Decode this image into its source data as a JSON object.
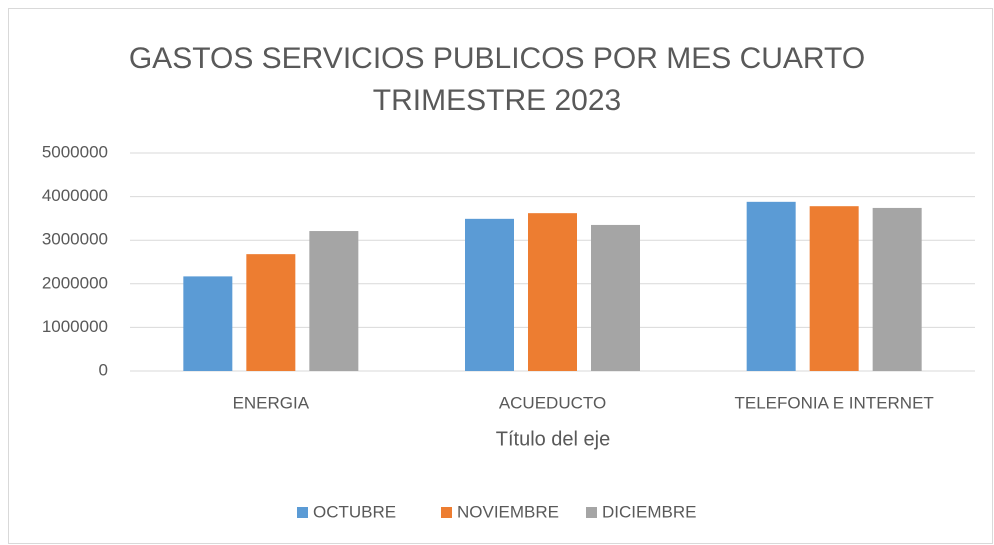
{
  "chart_data": {
    "type": "bar",
    "title": "GASTOS SERVICIOS PUBLICOS POR MES CUARTO TRIMESTRE 2023",
    "x_label": "Título del eje",
    "categories": [
      "ENERGIA",
      "ACUEDUCTO",
      "TELEFONIA E INTERNET"
    ],
    "series": [
      {
        "name": "OCTUBRE",
        "color": "#5b9bd5",
        "values": [
          2170000,
          3490000,
          3880000
        ]
      },
      {
        "name": "NOVIEMBRE",
        "color": "#ed7d31",
        "values": [
          2680000,
          3620000,
          3780000
        ]
      },
      {
        "name": "DICIEMBRE",
        "color": "#a5a5a5",
        "values": [
          3210000,
          3350000,
          3740000
        ]
      }
    ],
    "ylim": [
      0,
      5000000
    ],
    "yticks": [
      0,
      1000000,
      2000000,
      3000000,
      4000000,
      5000000
    ],
    "grid": true,
    "legend": "bottom"
  }
}
